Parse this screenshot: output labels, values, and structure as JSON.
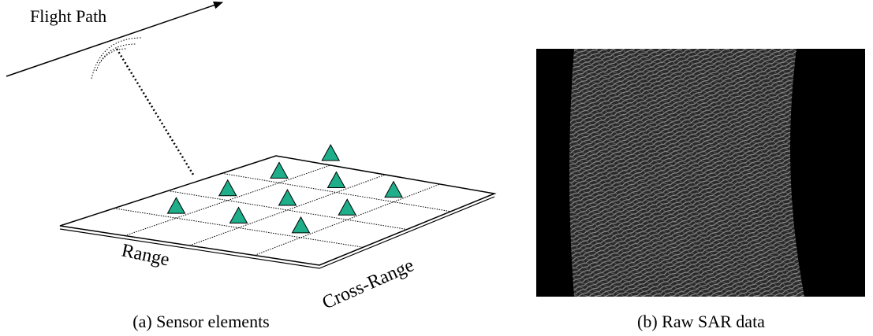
{
  "figure_a": {
    "flight_path": "Flight Path",
    "range": "Range",
    "cross_range": "Cross-Range",
    "caption": "(a) Sensor elements"
  },
  "figure_b": {
    "caption": "(b) Raw SAR data"
  }
}
